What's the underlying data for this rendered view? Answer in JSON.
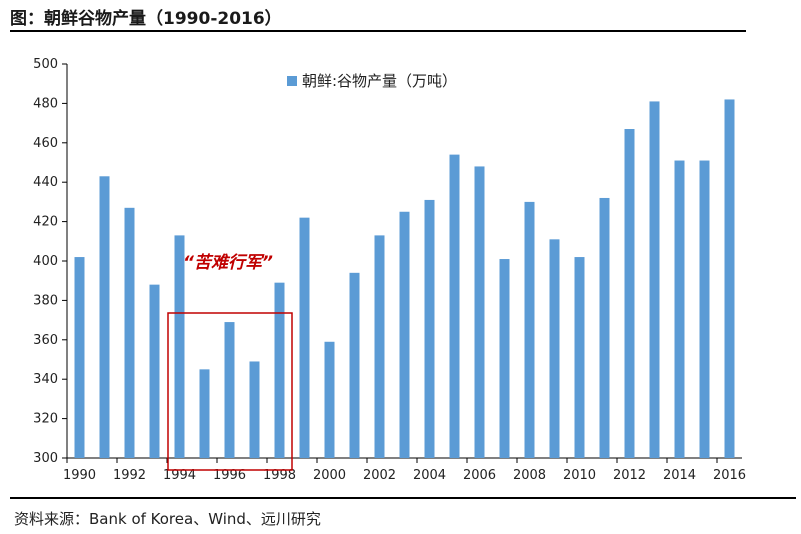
{
  "figure": {
    "title": "图：朝鲜谷物产量（1990-2016）",
    "source": "资料来源：Bank of Korea、Wind、远川研究"
  },
  "chart_data": {
    "type": "bar",
    "series": [
      {
        "name": "朝鲜:谷物产量（万吨）",
        "color": "#5b9bd5",
        "values": [
          402,
          443,
          427,
          388,
          413,
          345,
          369,
          349,
          389,
          422,
          359,
          394,
          413,
          425,
          431,
          454,
          448,
          401,
          430,
          411,
          402,
          432,
          467,
          481,
          451,
          451,
          482
        ]
      }
    ],
    "categories": [
      "1990",
      "1991",
      "1992",
      "1993",
      "1994",
      "1995",
      "1996",
      "1997",
      "1998",
      "1999",
      "2000",
      "2001",
      "2002",
      "2003",
      "2004",
      "2005",
      "2006",
      "2007",
      "2008",
      "2009",
      "2010",
      "2011",
      "2012",
      "2013",
      "2014",
      "2015",
      "2016"
    ],
    "x_tick_labels": [
      "1990",
      "1992",
      "1994",
      "1996",
      "1998",
      "2000",
      "2002",
      "2004",
      "2006",
      "2008",
      "2010",
      "2012",
      "2014",
      "2016"
    ],
    "y_ticks": [
      300,
      320,
      340,
      360,
      380,
      400,
      420,
      440,
      460,
      480,
      500
    ],
    "ylim": [
      300,
      500
    ],
    "legend_position": "top-center",
    "grid": false,
    "annotation": {
      "text": "“苦难行军”",
      "highlight_range": [
        "1994",
        "1998"
      ],
      "color": "#c00000"
    }
  }
}
